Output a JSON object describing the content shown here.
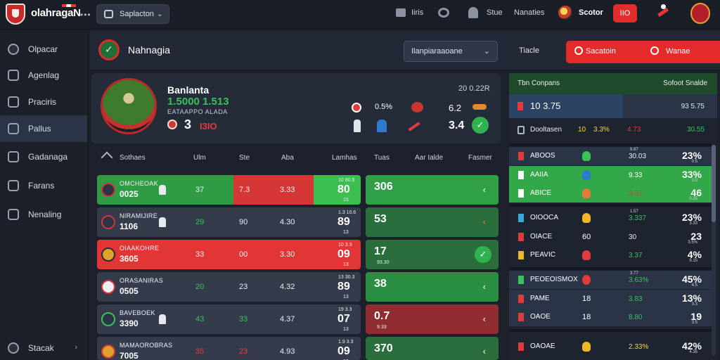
{
  "topbar": {
    "brand": "olahragaN",
    "more": "•••",
    "select_label": "Saplacton",
    "link1": "Iiris",
    "link2": "Stue",
    "link3": "Nanaties",
    "user_label": "Scotor",
    "red_btn": "IIO"
  },
  "sidebar": {
    "items": [
      {
        "label": "Olpacar",
        "icon": "compass-icon"
      },
      {
        "label": "Agenlag",
        "icon": "chart-icon"
      },
      {
        "label": "Praciris",
        "icon": "book-icon"
      },
      {
        "label": "Pallus",
        "icon": "stats-icon"
      },
      {
        "label": "Gadanaga",
        "icon": "window-icon"
      },
      {
        "label": "Farans",
        "icon": "pen-icon"
      },
      {
        "label": "Nenaling",
        "icon": "person-icon"
      }
    ],
    "footer": {
      "label": "Stacak",
      "chevron": "›"
    }
  },
  "header": {
    "app_name": "Nahnagia",
    "select": "Ilanpiaraaoane",
    "select_chev": "⌄",
    "link": "Tiacle",
    "red_label1": "Sacatoin",
    "red_label2": "Wanae",
    "red_chev": "⌄"
  },
  "featured": {
    "title": "Banlanta",
    "score": "1.5000 1.513",
    "subtitle": "EATAAPPO ALADA",
    "time": "20 0.22R",
    "num": "3",
    "red": "I3IO",
    "val1": "0.5%",
    "val2": "6.2",
    "val3": "3.4"
  },
  "table": {
    "headers": [
      "Sothaes",
      "Ulm",
      "Ste",
      "Aba",
      "Lamhas",
      "Tuas",
      "Aar Ialde",
      "Fasmer"
    ],
    "rows": [
      {
        "name": "OMCHEOAK",
        "code": "0025",
        "c1": "37",
        "c2": "7.3",
        "c3": "3.33",
        "small": "10 80.5",
        "big": "80",
        "small2": "15",
        "pill": "306",
        "pill_sub": "",
        "chev": "‹"
      },
      {
        "name": "NIRAMIJIRE",
        "code": "1106",
        "c1": "29",
        "c2": "90",
        "c3": "4.30",
        "small": "1.3 10.6",
        "big": "89",
        "small2": "13",
        "pill": "53",
        "pill_sub": "",
        "chev": "‹"
      },
      {
        "name": "OIAAKOHRE",
        "code": "3605",
        "c1": "33",
        "c2": "00",
        "c3": "3.30",
        "small": "10 3.3",
        "big": "09",
        "small2": "13",
        "pill": "17",
        "pill_sub": "93.30",
        "chev": "‹"
      },
      {
        "name": "ORASANIRAS",
        "code": "0505",
        "c1": "20",
        "c2": "23",
        "c3": "4.32",
        "small": "13 30.3",
        "big": "89",
        "small2": "13",
        "pill": "38",
        "pill_sub": "",
        "chev": "‹"
      },
      {
        "name": "BAVEBOEK",
        "code": "3390",
        "c1": "43",
        "c2": "33",
        "c3": "4.37",
        "small": "19 3.3",
        "big": "07",
        "small2": "13",
        "pill": "0.7",
        "pill_sub": "9.33",
        "chev": "‹"
      },
      {
        "name": "MAMAOROBRAS",
        "code": "7005",
        "c1": "35",
        "c2": "23",
        "c3": "4.93",
        "small": "1.9 3.3",
        "big": "09",
        "small2": "13",
        "pill": "370",
        "pill_sub": "",
        "chev": "‹"
      }
    ]
  },
  "right_panel": {
    "top_left": "Tbn Conpans",
    "top_right": "Sofoot Snalde",
    "band_text": "10 3.75",
    "band_right": "93 5.75",
    "bar_label": "Dooltasen",
    "bar_v1": "10",
    "bar_v2": "3.3%",
    "bar_v3": "4.73",
    "bar_v4": "30.55",
    "groups": [
      [
        {
          "name": "ABOOS",
          "n": "",
          "sm": "9.87",
          "mid": "30.03",
          "big": "23%",
          "sm2": "0.5"
        },
        {
          "name": "AAIIA",
          "n": "",
          "sm": "",
          "mid": "9.33",
          "big": "33%",
          "sm2": "0.0"
        },
        {
          "name": "ABICE",
          "n": "",
          "sm": "",
          "mid": "3.37",
          "big": "46",
          "sm2": "0.25"
        }
      ],
      [
        {
          "name": "OIOOCA",
          "n": "",
          "sm": "1.57",
          "mid": "3.337",
          "big": "23%",
          "sm2": "3.33"
        },
        {
          "name": "OIACE",
          "n": "60",
          "sm": "",
          "mid": "30",
          "big": "23",
          "sm2": "3.5%"
        },
        {
          "name": "PEAVIC",
          "n": "",
          "sm": "",
          "mid": "3.37",
          "big": "4%",
          "sm2": "9.15"
        }
      ],
      [
        {
          "name": "PEOEOISMOX",
          "n": "",
          "sm": "3.77",
          "mid": "3.63%",
          "big": "45%",
          "sm2": "4.5"
        },
        {
          "name": "PAME",
          "n": "18",
          "sm": "",
          "mid": "3.83",
          "big": "13%",
          "sm2": "3.3"
        },
        {
          "name": "OAOE",
          "n": "18",
          "sm": "",
          "mid": "8.80",
          "big": "19",
          "sm2": "3.5"
        }
      ],
      [
        {
          "name": "OAOAE",
          "n": "",
          "sm": "",
          "mid": "2.33%",
          "big": "42%",
          "sm2": "4.35"
        }
      ]
    ]
  }
}
